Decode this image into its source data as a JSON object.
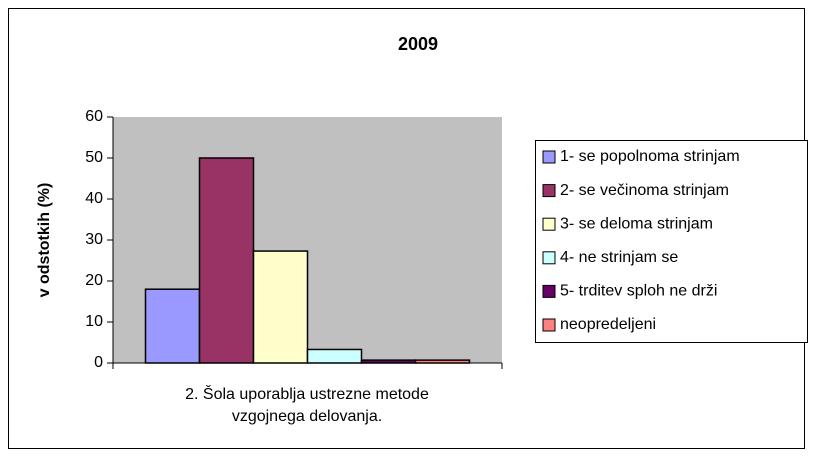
{
  "chart_data": {
    "type": "bar",
    "title": "2009",
    "y_label": "v odstotkih (%)",
    "categories": [
      "2. Šola uporablja ustrezne metode vzgojnega delovanja."
    ],
    "series": [
      {
        "name": "1- se popolnoma strinjam",
        "color": "#9999ff",
        "values": [
          18
        ]
      },
      {
        "name": "2- se večinoma strinjam",
        "color": "#993366",
        "values": [
          50
        ]
      },
      {
        "name": "3- se deloma strinjam",
        "color": "#ffffcc",
        "values": [
          27.3
        ]
      },
      {
        "name": "4- ne strinjam se",
        "color": "#ccffff",
        "values": [
          3.3
        ]
      },
      {
        "name": "5- trditev sploh ne drži",
        "color": "#660066",
        "values": [
          0.7
        ]
      },
      {
        "name": "neopredeljeni",
        "color": "#ff8080",
        "values": [
          0.7
        ]
      }
    ],
    "ylim": [
      0,
      60
    ],
    "yticks": [
      0,
      10,
      20,
      30,
      40,
      50,
      60
    ],
    "legend": "right"
  }
}
